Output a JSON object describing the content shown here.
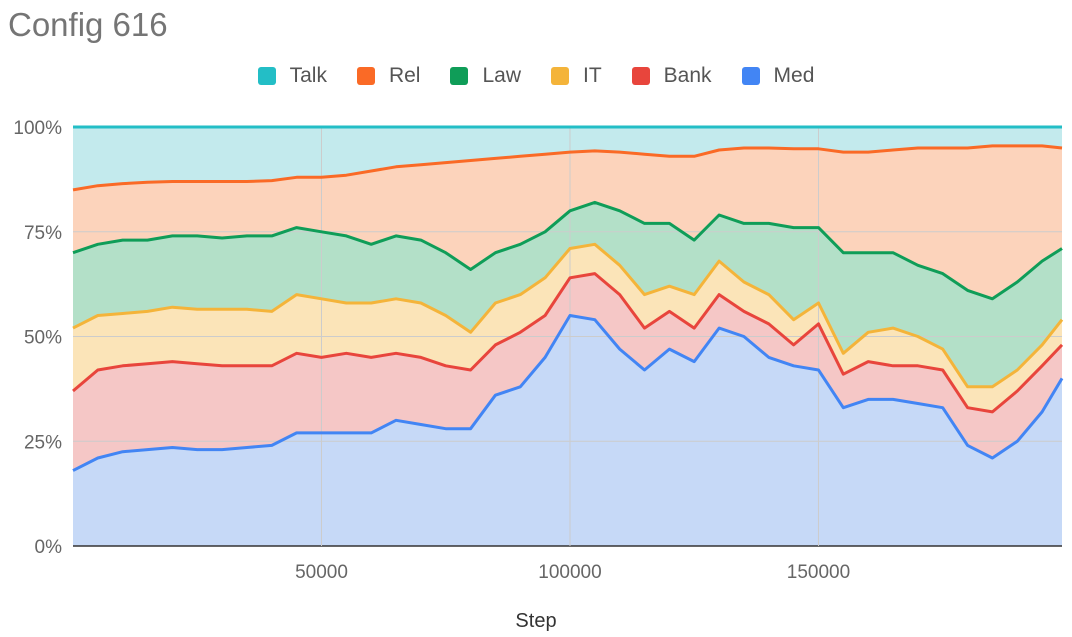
{
  "title": "Config 616",
  "chart_data": {
    "type": "area",
    "stacked": "percent",
    "xlabel": "Step",
    "ylabel": "",
    "xlim": [
      0,
      199000
    ],
    "ylim": [
      0,
      100
    ],
    "x_ticks": [
      50000,
      100000,
      150000
    ],
    "x_tick_labels": [
      "50000",
      "100000",
      "150000"
    ],
    "y_ticks": [
      0,
      25,
      50,
      75,
      100
    ],
    "y_tick_labels": [
      "0%",
      "25%",
      "50%",
      "75%",
      "100%"
    ],
    "grid": true,
    "legend_position": "top",
    "legend_order": [
      "Talk",
      "Rel",
      "Law",
      "IT",
      "Bank",
      "Med"
    ],
    "x": [
      0,
      5000,
      10000,
      15000,
      20000,
      25000,
      30000,
      35000,
      40000,
      45000,
      50000,
      55000,
      60000,
      65000,
      70000,
      75000,
      80000,
      85000,
      90000,
      95000,
      100000,
      105000,
      110000,
      115000,
      120000,
      125000,
      130000,
      135000,
      140000,
      145000,
      150000,
      155000,
      160000,
      165000,
      170000,
      175000,
      180000,
      185000,
      190000,
      195000,
      199000
    ],
    "series": [
      {
        "name": "Med",
        "color": "#4285f4",
        "fill": "#c6d9f7",
        "values": [
          18,
          21,
          22.5,
          23,
          23.5,
          23,
          23,
          23.5,
          24,
          27,
          27,
          27,
          27,
          30,
          29,
          28,
          28,
          36,
          38,
          45,
          55,
          54,
          47,
          42,
          47,
          44,
          52,
          50,
          45,
          43,
          42,
          33,
          35,
          35,
          34,
          33,
          24,
          21,
          25,
          32,
          40
        ]
      },
      {
        "name": "Bank",
        "color": "#e8453c",
        "fill": "#f5c7c6",
        "values": [
          37,
          42,
          43,
          43.5,
          44,
          43.5,
          43,
          43,
          43,
          46,
          45,
          46,
          45,
          46,
          45,
          43,
          42,
          48,
          51,
          55,
          64,
          65,
          60,
          52,
          56,
          52,
          60,
          56,
          53,
          48,
          53,
          41,
          44,
          43,
          43,
          42,
          33,
          32,
          37,
          43,
          48
        ]
      },
      {
        "name": "IT",
        "color": "#f4b43a",
        "fill": "#fbe4b8",
        "values": [
          52,
          55,
          55.5,
          56,
          57,
          56.5,
          56.5,
          56.5,
          56,
          60,
          59,
          58,
          58,
          59,
          58,
          55,
          51,
          58,
          60,
          64,
          71,
          72,
          67,
          60,
          62,
          60,
          68,
          63,
          60,
          54,
          58,
          46,
          51,
          52,
          50,
          47,
          38,
          38,
          42,
          48,
          54
        ]
      },
      {
        "name": "Law",
        "color": "#0f9d58",
        "fill": "#b3e0c8",
        "values": [
          70,
          72,
          73,
          73,
          74,
          74,
          73.5,
          74,
          74,
          76,
          75,
          74,
          72,
          74,
          73,
          70,
          66,
          70,
          72,
          75,
          80,
          82,
          80,
          77,
          77,
          73,
          79,
          77,
          77,
          76,
          76,
          70,
          70,
          70,
          67,
          65,
          61,
          59,
          63,
          68,
          71
        ]
      },
      {
        "name": "Rel",
        "color": "#fa6a26",
        "fill": "#fcd3bb",
        "values": [
          85,
          86,
          86.5,
          86.8,
          87,
          87,
          87,
          87,
          87.2,
          88,
          88,
          88.5,
          89.5,
          90.5,
          91,
          91.5,
          92,
          92.5,
          93,
          93.5,
          94,
          94.3,
          94,
          93.5,
          93,
          93,
          94.5,
          95,
          95,
          94.8,
          94.8,
          94,
          94,
          94.5,
          95,
          95,
          95,
          95.5,
          95.5,
          95.5,
          95
        ]
      },
      {
        "name": "Talk",
        "color": "#23bec6",
        "fill": "#c3eaed",
        "values": [
          100,
          100,
          100,
          100,
          100,
          100,
          100,
          100,
          100,
          100,
          100,
          100,
          100,
          100,
          100,
          100,
          100,
          100,
          100,
          100,
          100,
          100,
          100,
          100,
          100,
          100,
          100,
          100,
          100,
          100,
          100,
          100,
          100,
          100,
          100,
          100,
          100,
          100,
          100,
          100,
          100
        ]
      }
    ]
  }
}
